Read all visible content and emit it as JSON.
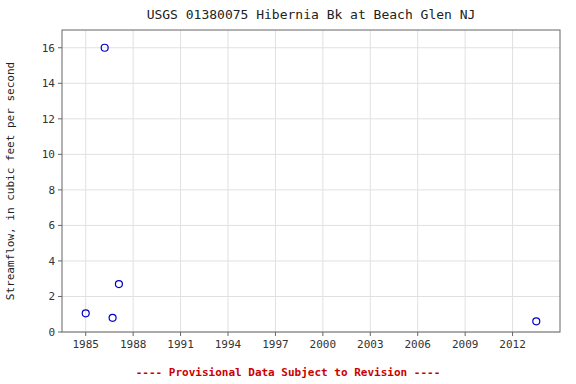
{
  "chart_data": {
    "type": "scatter",
    "title": "USGS 01380075 Hibernia Bk at Beach Glen NJ",
    "ylabel": "Streamflow, in cubic feet per second",
    "x": [
      1985.0,
      1986.2,
      1986.7,
      1987.1,
      2013.5
    ],
    "values": [
      1.05,
      16.0,
      0.8,
      2.7,
      0.6
    ],
    "color": "#0000cc",
    "marker": "open-circle",
    "xlim": [
      1983.5,
      2015.0
    ],
    "ylim": [
      0,
      17
    ],
    "xticks": [
      1985,
      1988,
      1991,
      1994,
      1997,
      2000,
      2003,
      2006,
      2009,
      2012
    ],
    "yticks": [
      0,
      2,
      4,
      6,
      8,
      10,
      12,
      14,
      16
    ],
    "grid": true,
    "annotations": [
      {
        "text": "---- Provisional Data Subject to Revision ----",
        "color": "#cc0000"
      }
    ]
  }
}
